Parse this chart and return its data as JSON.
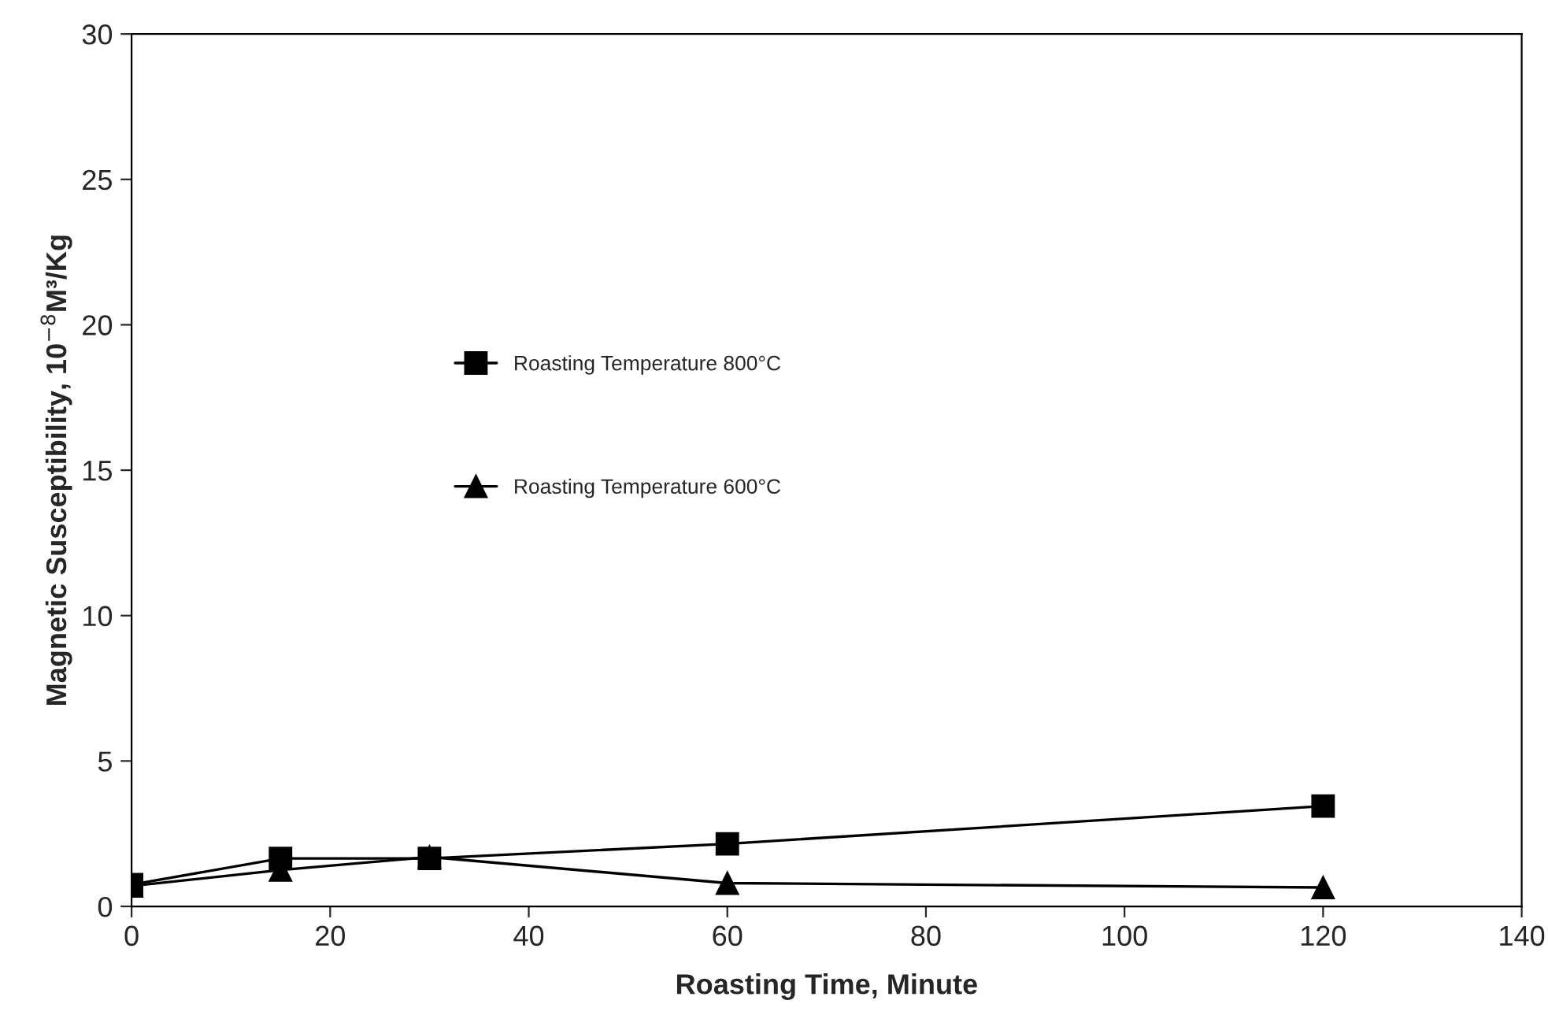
{
  "chart_data": {
    "type": "line",
    "xlabel": "Roasting Time, Minute",
    "ylabel": "Magnetic Susceptibility, 10$^{−8}$M³/Kg",
    "xlim": [
      0,
      140
    ],
    "xticks": [
      0,
      20,
      40,
      60,
      80,
      100,
      120,
      140
    ],
    "ylim": [
      0,
      30
    ],
    "yticks": [
      0,
      5,
      10,
      15,
      20,
      25,
      30
    ],
    "grid": false,
    "legend": "center",
    "line_style": "solid",
    "series": [
      {
        "name": "Roasting Temperature 800°C",
        "color": "#000000",
        "marker": "square",
        "x": [
          0,
          15,
          30,
          60,
          120
        ],
        "values": [
          0.75,
          1.65,
          1.65,
          2.15,
          3.45
        ]
      },
      {
        "name": "Roasting Temperature 600°C",
        "color": "#000000",
        "marker": "triangle",
        "x": [
          0,
          15,
          30,
          60,
          120
        ],
        "values": [
          0.7,
          1.25,
          1.7,
          0.8,
          0.65
        ]
      }
    ]
  }
}
